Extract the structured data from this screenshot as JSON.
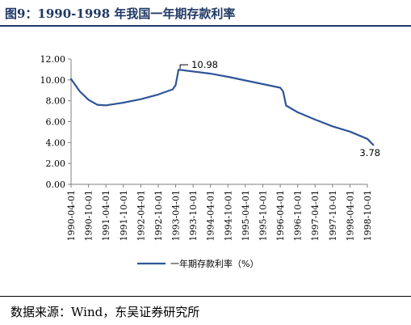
{
  "figure": {
    "title": "图9：1990-1998 年我国一年期存款利率",
    "source": "数据来源：Wind，东吴证券研究所"
  },
  "chart_data": {
    "type": "line",
    "title": "",
    "xlabel": "",
    "ylabel": "",
    "ylim": [
      0,
      12
    ],
    "y_ticks": [
      "0.00",
      "2.00",
      "4.00",
      "6.00",
      "8.00",
      "10.00",
      "12.00"
    ],
    "x_tick_labels": [
      "1990-04-01",
      "1990-10-01",
      "1991-04-01",
      "1991-10-01",
      "1992-04-01",
      "1992-10-01",
      "1993-04-01",
      "1993-10-01",
      "1994-04-01",
      "1994-10-01",
      "1995-04-01",
      "1995-10-01",
      "1996-04-01",
      "1996-10-01",
      "1997-04-01",
      "1997-10-01",
      "1998-04-01",
      "1998-10-01"
    ],
    "grid": false,
    "legend_position": "bottom",
    "series": [
      {
        "name": "一年期存款利率（%）",
        "color": "#2f5597",
        "x": [
          "1990-04-01",
          "1990-07-01",
          "1990-10-01",
          "1991-01-01",
          "1991-04-01",
          "1991-10-01",
          "1992-04-01",
          "1992-10-01",
          "1993-03-01",
          "1993-04-01",
          "1993-05-01",
          "1994-04-01",
          "1994-10-01",
          "1995-04-01",
          "1995-10-01",
          "1996-04-01",
          "1996-05-01",
          "1996-06-01",
          "1996-10-01",
          "1997-04-01",
          "1997-10-01",
          "1998-04-01",
          "1998-10-01",
          "1998-12-01"
        ],
        "values": [
          10.08,
          8.9,
          8.1,
          7.62,
          7.56,
          7.82,
          8.15,
          8.6,
          9.1,
          9.5,
          10.98,
          10.6,
          10.3,
          9.95,
          9.6,
          9.25,
          8.9,
          7.55,
          6.9,
          6.2,
          5.55,
          5.05,
          4.35,
          3.78
        ]
      }
    ],
    "annotations": [
      {
        "x": "1993-05-01",
        "y": 10.98,
        "text": "10.98"
      },
      {
        "x": "1998-12-01",
        "y": 3.78,
        "text": "3.78"
      }
    ]
  }
}
